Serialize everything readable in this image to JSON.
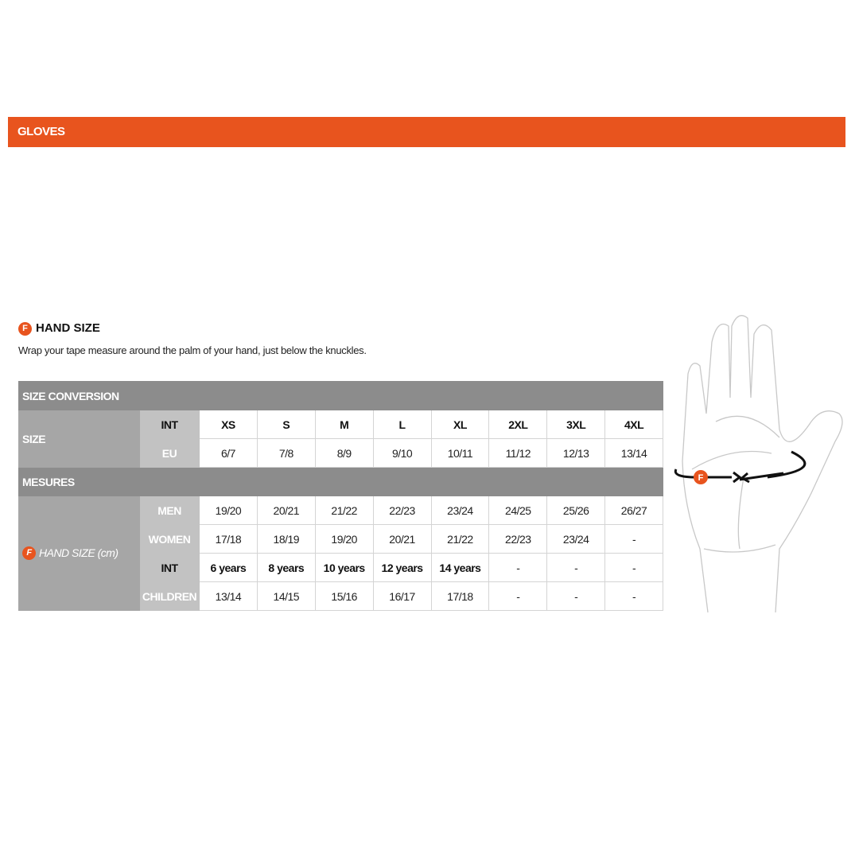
{
  "banner": {
    "title": "GLOVES"
  },
  "section": {
    "badge": "F",
    "title": "HAND SIZE",
    "description": "Wrap your tape measure around the palm of your hand, just below the knuckles."
  },
  "colors": {
    "accent": "#e8541e",
    "header_gray": "#8c8c8c",
    "label_gray": "#a6a6a6",
    "sublabel_gray": "#c2c2c2"
  },
  "table": {
    "size_conversion": "SIZE CONVERSION",
    "size_label": "SIZE",
    "int_label": "INT",
    "eu_label": "EU",
    "int": [
      "XS",
      "S",
      "M",
      "L",
      "XL",
      "2XL",
      "3XL",
      "4XL"
    ],
    "eu": [
      "6/7",
      "7/8",
      "8/9",
      "9/10",
      "10/11",
      "11/12",
      "12/13",
      "13/14"
    ],
    "mesures": "MESURES",
    "hand_size_badge": "F",
    "hand_size_label": "HAND SIZE (cm)",
    "men_label": "MEN",
    "women_label": "WOMEN",
    "children_int_label": "INT",
    "children_label": "CHILDREN",
    "men": [
      "19/20",
      "20/21",
      "21/22",
      "22/23",
      "23/24",
      "24/25",
      "25/26",
      "26/27"
    ],
    "women": [
      "17/18",
      "18/19",
      "19/20",
      "20/21",
      "21/22",
      "22/23",
      "23/24",
      "-"
    ],
    "children_int": [
      "6 years",
      "8 years",
      "10 years",
      "12 years",
      "14 years",
      "-",
      "-",
      "-"
    ],
    "children": [
      "13/14",
      "14/15",
      "15/16",
      "16/17",
      "17/18",
      "-",
      "-",
      "-"
    ]
  },
  "illustration": {
    "badge": "F"
  }
}
